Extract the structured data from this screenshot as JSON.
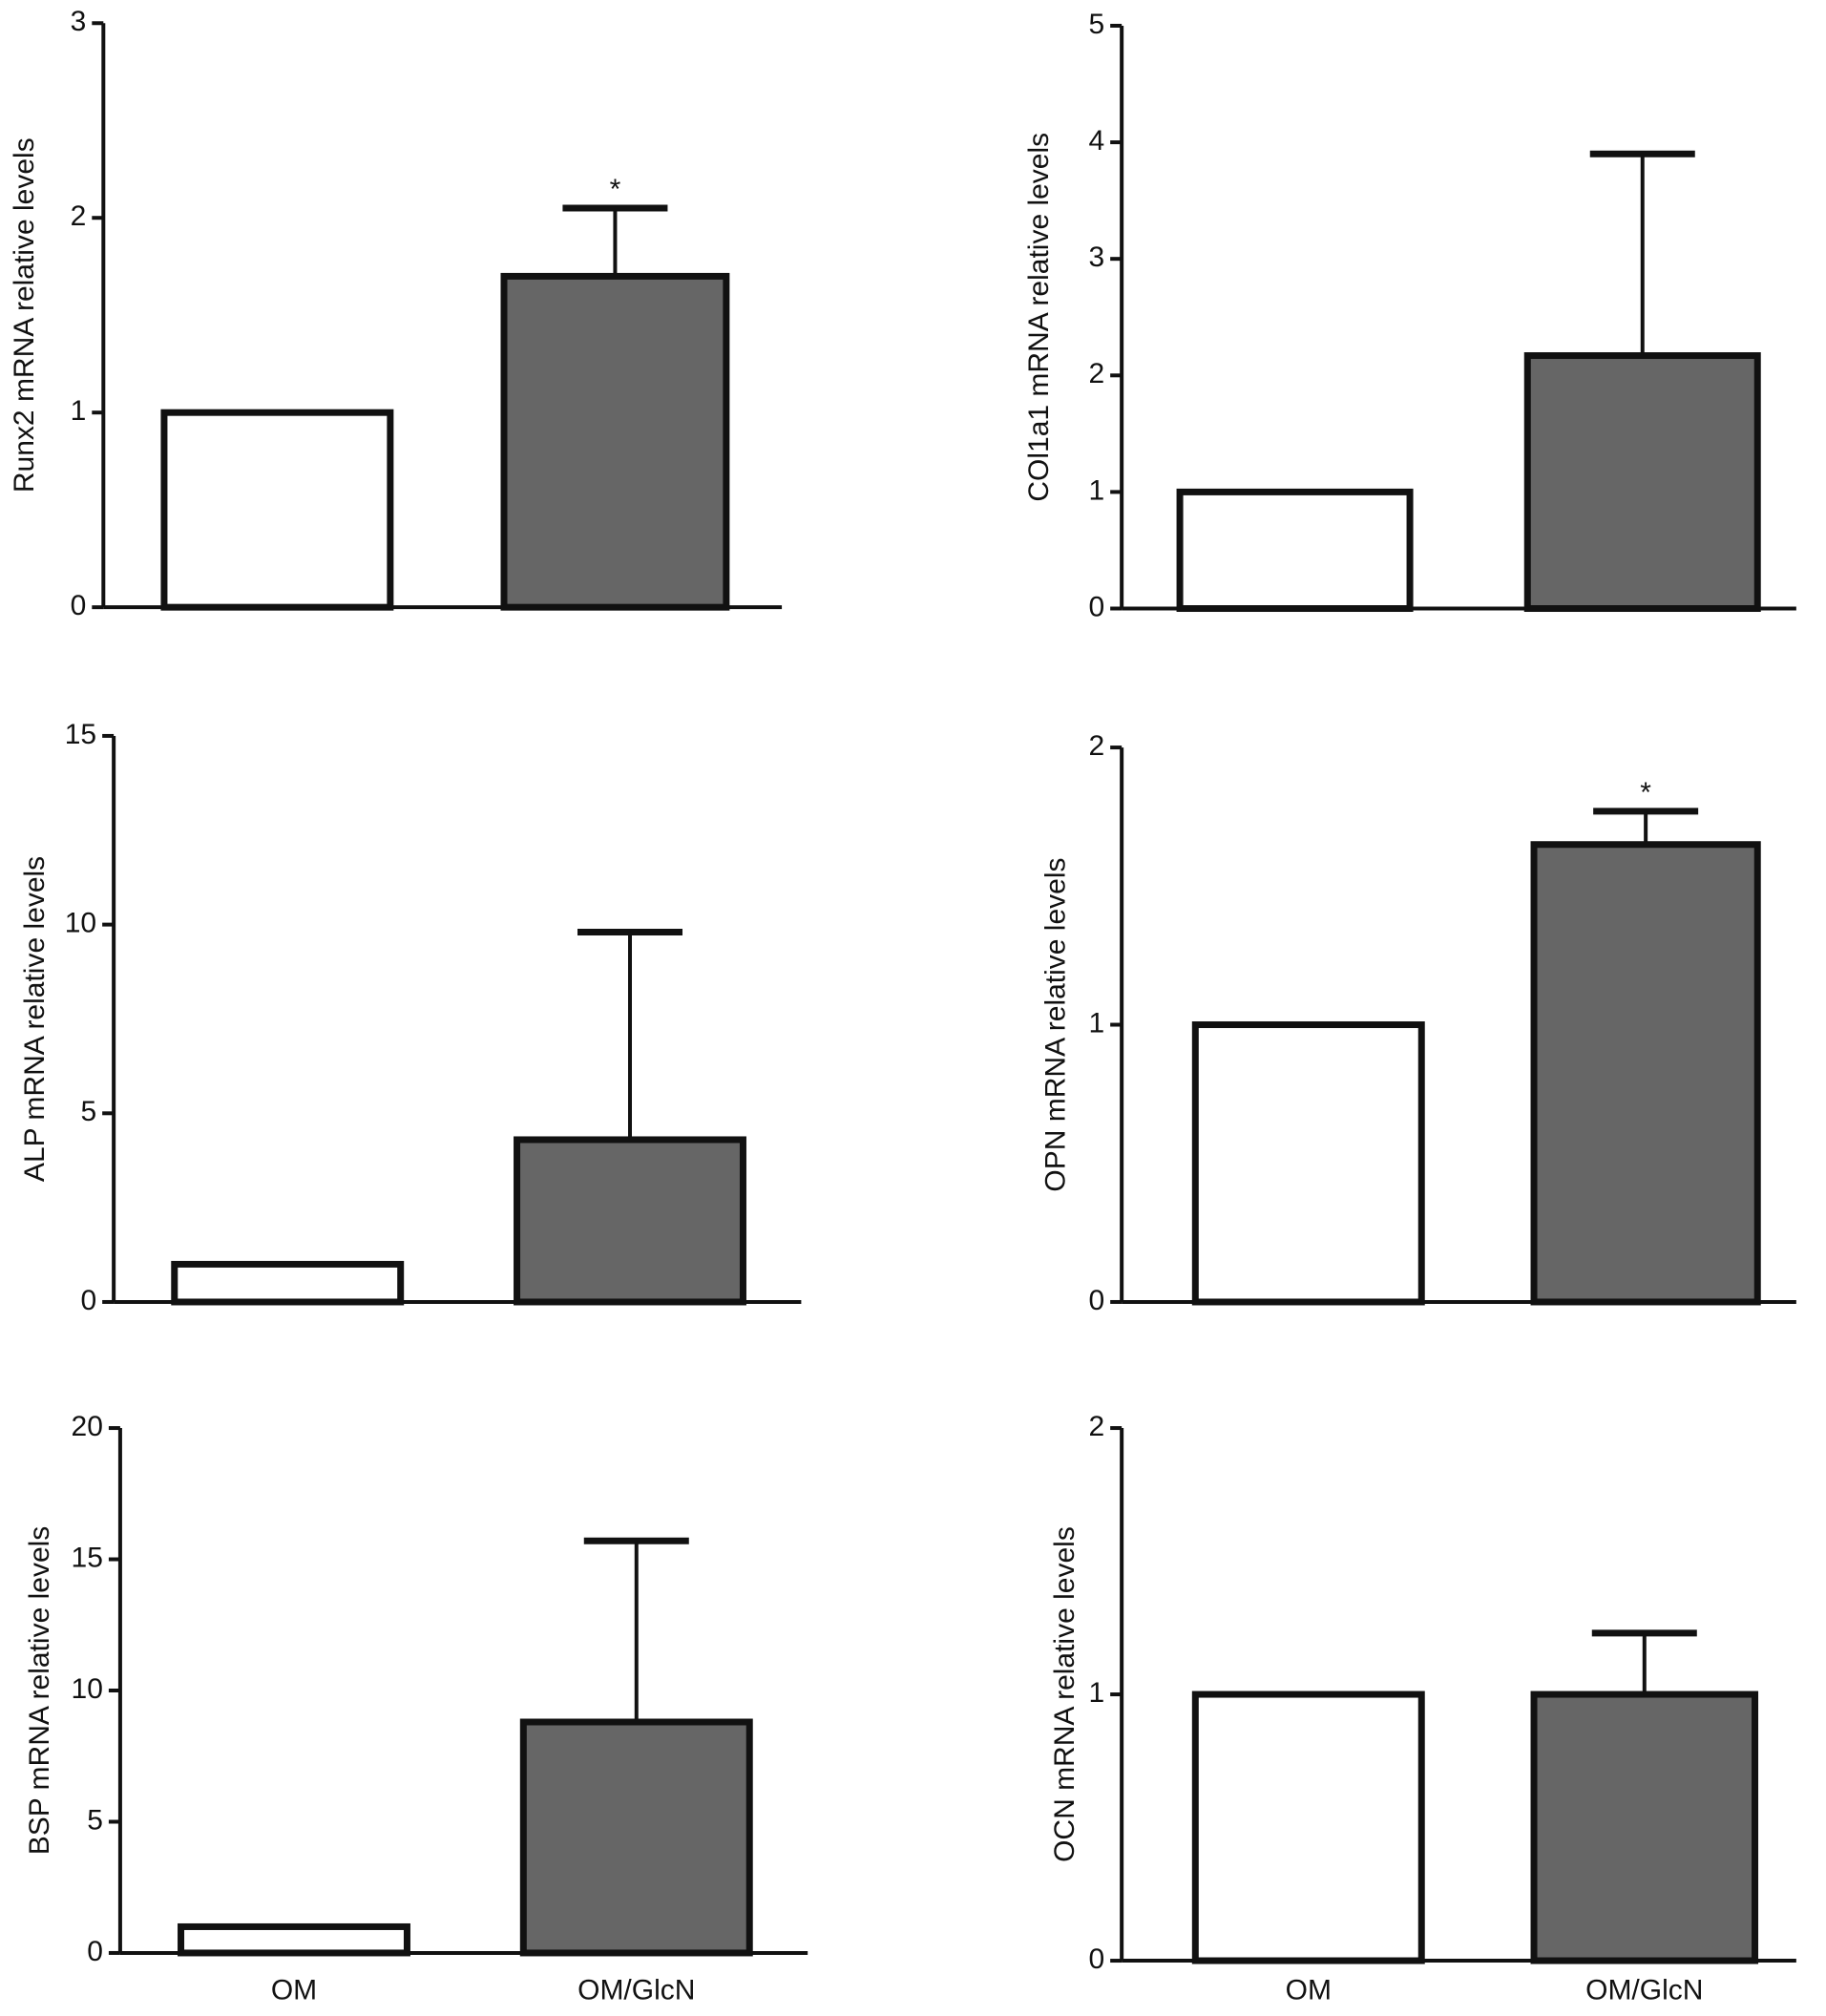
{
  "chart_data": [
    {
      "type": "bar",
      "ylabel": "Runx2 mRNA relative levels",
      "categories": [
        null,
        null
      ],
      "values": [
        1,
        1.7
      ],
      "errors": [
        null,
        0.35
      ],
      "colors": [
        "#ffffff",
        "#666666"
      ],
      "ylim": [
        0,
        3
      ],
      "yticks": [
        0,
        1,
        2,
        3
      ],
      "annotation": "*"
    },
    {
      "type": "bar",
      "ylabel": "COl1a1 mRNA relative levels",
      "categories": [
        null,
        null
      ],
      "values": [
        1,
        2.17
      ],
      "errors": [
        null,
        1.73
      ],
      "colors": [
        "#ffffff",
        "#666666"
      ],
      "ylim": [
        0,
        5
      ],
      "yticks": [
        0,
        1,
        2,
        3,
        4,
        5
      ]
    },
    {
      "type": "bar",
      "ylabel": "ALP mRNA relative levels",
      "categories": [
        null,
        null
      ],
      "values": [
        1,
        4.3
      ],
      "errors": [
        null,
        5.5
      ],
      "colors": [
        "#ffffff",
        "#666666"
      ],
      "ylim": [
        0,
        15
      ],
      "yticks": [
        0,
        5,
        10,
        15
      ]
    },
    {
      "type": "bar",
      "ylabel": "OPN mRNA relative levels",
      "categories": [
        null,
        null
      ],
      "values": [
        1,
        1.65
      ],
      "errors": [
        null,
        0.12
      ],
      "colors": [
        "#ffffff",
        "#666666"
      ],
      "ylim": [
        0,
        2
      ],
      "yticks": [
        0,
        1,
        2
      ],
      "annotation": "*"
    },
    {
      "type": "bar",
      "ylabel": "BSP mRNA relative levels",
      "categories": [
        "OM",
        "OM/GlcN"
      ],
      "values": [
        1,
        8.8
      ],
      "errors": [
        null,
        6.9
      ],
      "colors": [
        "#ffffff",
        "#666666"
      ],
      "ylim": [
        0,
        20
      ],
      "yticks": [
        0,
        5,
        10,
        15,
        20
      ]
    },
    {
      "type": "bar",
      "ylabel": "OCN mRNA relative levels",
      "categories": [
        "OM",
        "OM/GlcN"
      ],
      "values": [
        1,
        1.0
      ],
      "errors": [
        null,
        0.23
      ],
      "colors": [
        "#ffffff",
        "#666666"
      ],
      "ylim": [
        0,
        2
      ],
      "yticks": [
        0,
        1,
        2
      ]
    }
  ]
}
